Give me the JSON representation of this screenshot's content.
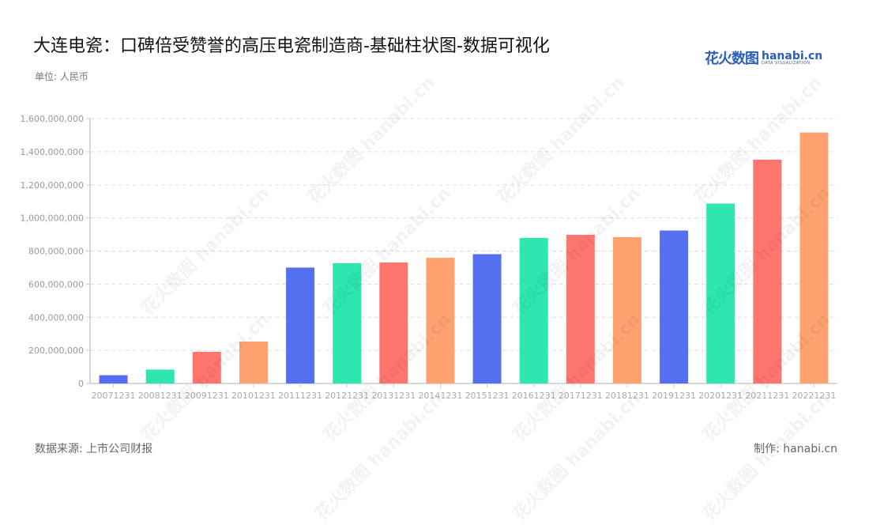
{
  "header": {
    "title": "大连电瓷：口碑倍受赞誉的高压电瓷制造商-基础柱状图-数据可视化",
    "unit": "单位: 人民币"
  },
  "logo": {
    "cn": "花火数图",
    "en": "hanabi.cn",
    "sub": "DATA VISUALIZATION"
  },
  "footer": {
    "source": "数据来源: 上市公司财报",
    "credit": "制作: hanabi.cn"
  },
  "watermark": "花火数图 hanabi.cn",
  "colors": [
    "#5470f0",
    "#2de6b0",
    "#ff766f",
    "#ffa26f"
  ],
  "chart_data": {
    "type": "bar",
    "title": "大连电瓷：口碑倍受赞誉的高压电瓷制造商-基础柱状图-数据可视化",
    "xlabel": "",
    "ylabel": "单位: 人民币",
    "ylim": [
      0,
      1600000000
    ],
    "yticks": [
      0,
      200000000,
      400000000,
      600000000,
      800000000,
      1000000000,
      1200000000,
      1400000000,
      1600000000
    ],
    "ytick_labels": [
      "0",
      "200,000,000",
      "400,000,000",
      "600,000,000",
      "800,000,000",
      "1,000,000,000",
      "1,200,000,000",
      "1,400,000,000",
      "1,600,000,000"
    ],
    "grid": true,
    "legend": "none",
    "categories": [
      "20071231",
      "20081231",
      "20091231",
      "20101231",
      "20111231",
      "20121231",
      "20131231",
      "20141231",
      "20151231",
      "20161231",
      "20171231",
      "20181231",
      "20191231",
      "20201231",
      "20211231",
      "20221231"
    ],
    "values": [
      50000000,
      84000000,
      191000000,
      253000000,
      700000000,
      726000000,
      731000000,
      759000000,
      781000000,
      879000000,
      898000000,
      884000000,
      924000000,
      1087000000,
      1352000000,
      1516000000
    ]
  }
}
